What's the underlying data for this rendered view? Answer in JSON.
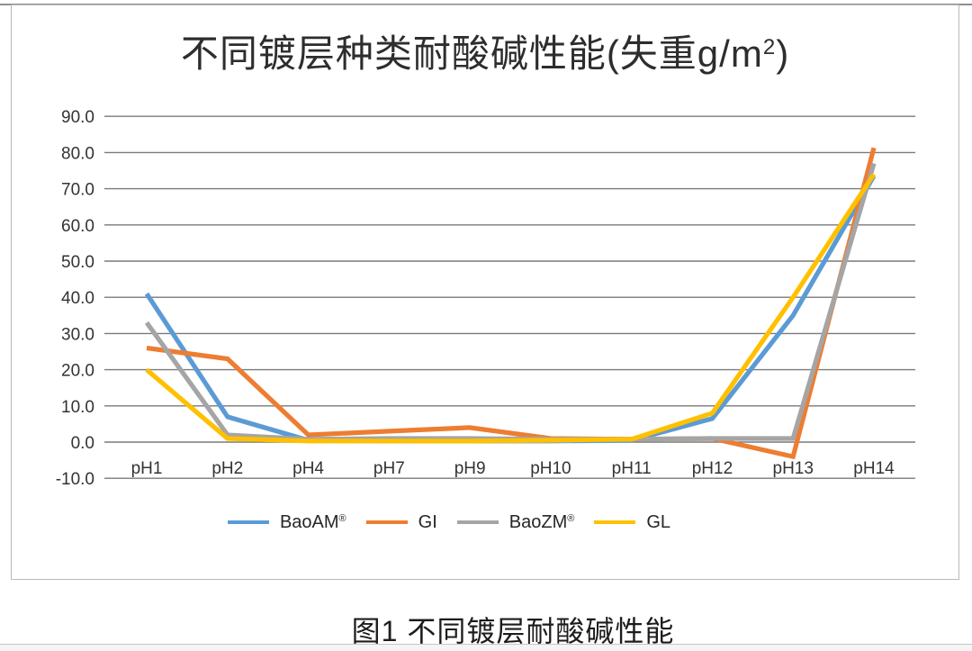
{
  "page": {
    "caption": "图1 不同镀层耐酸碱性能"
  },
  "chart": {
    "title_prefix": "不同镀层种类耐酸碱性能(失重g/m",
    "title_sup": "2",
    "title_suffix": ")"
  },
  "chart_data": {
    "type": "line",
    "title": "不同镀层种类耐酸碱性能(失重g/m²)",
    "xlabel": "",
    "ylabel": "",
    "categories": [
      "pH1",
      "pH2",
      "pH4",
      "pH7",
      "pH9",
      "pH10",
      "pH11",
      "pH12",
      "pH13",
      "pH14"
    ],
    "series": [
      {
        "name": "BaoAM",
        "name_mark": "®",
        "color": "#5B9BD5",
        "values": [
          41.0,
          7.0,
          0.5,
          0.3,
          0.3,
          0.3,
          0.5,
          6.5,
          35.0,
          73.5
        ]
      },
      {
        "name": "GI",
        "name_mark": "",
        "color": "#ED7D31",
        "values": [
          26.0,
          23.0,
          2.0,
          3.0,
          4.0,
          1.0,
          0.8,
          1.0,
          -4.0,
          81.3
        ]
      },
      {
        "name": "BaoZM",
        "name_mark": "®",
        "color": "#A5A5A5",
        "values": [
          33.0,
          2.0,
          0.8,
          1.0,
          1.0,
          0.8,
          0.8,
          1.0,
          1.0,
          77.0
        ]
      },
      {
        "name": "GL",
        "name_mark": "",
        "color": "#FFC000",
        "values": [
          20.0,
          1.0,
          0.3,
          0.3,
          0.3,
          0.5,
          0.8,
          8.0,
          40.0,
          74.0
        ]
      }
    ],
    "ylim": [
      -10,
      90
    ],
    "ytick_step": 10,
    "ytick_labels": [
      "90.0",
      "80.0",
      "70.0",
      "60.0",
      "50.0",
      "40.0",
      "30.0",
      "20.0",
      "10.0",
      "0.0",
      "-10.0"
    ],
    "grid": true,
    "gridline_color": "#7a7a7a",
    "axis_label_color": "#333333",
    "legend_position": "bottom"
  }
}
